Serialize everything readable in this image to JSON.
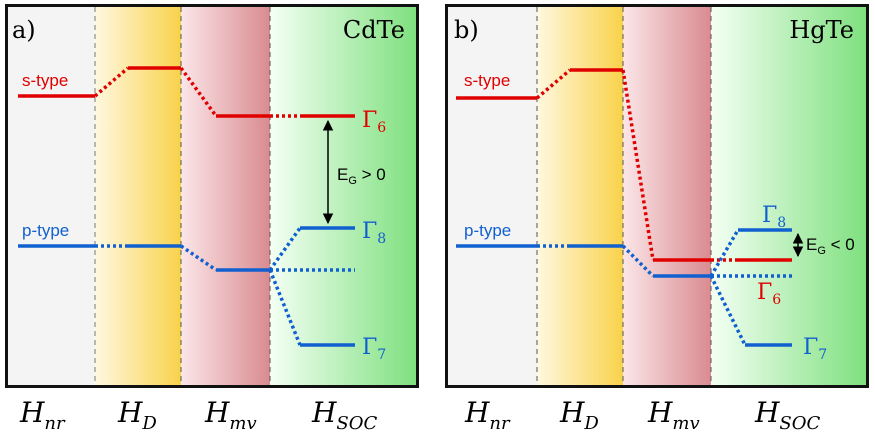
{
  "colors": {
    "s_band": "#e00000",
    "p_band": "#1060d0",
    "frame": "#111111",
    "arrow": "#000000",
    "col_nr": "#f4f4f4",
    "col_d_start": "#fff8e0",
    "col_d_end": "#f9d24a",
    "col_mv_start": "#fbe6e8",
    "col_mv_end": "#d98b90",
    "col_soc_start": "#f4fff4",
    "col_soc_end": "#7ee07e"
  },
  "panel_a": {
    "label": "a)",
    "material": "CdTe",
    "s_label": "s-type",
    "p_label": "p-type",
    "gamma6": "Γ",
    "gamma6_sub": "6",
    "gamma8": "Γ",
    "gamma8_sub": "8",
    "gamma7": "Γ",
    "gamma7_sub": "7",
    "gap_label": "E",
    "gap_sub": "G",
    "gap_relation": " > 0"
  },
  "panel_b": {
    "label": "b)",
    "material": "HgTe",
    "s_label": "s-type",
    "p_label": "p-type",
    "gamma6": "Γ",
    "gamma6_sub": "6",
    "gamma8": "Γ",
    "gamma8_sub": "8",
    "gamma7": "Γ",
    "gamma7_sub": "7",
    "gap_label": "E",
    "gap_sub": "G",
    "gap_relation": " < 0"
  },
  "hamiltonians": [
    {
      "base": "H",
      "sub": "nr"
    },
    {
      "base": "H",
      "sub": "D"
    },
    {
      "base": "H",
      "sub": "mv"
    },
    {
      "base": "H",
      "sub": "SOC"
    }
  ]
}
